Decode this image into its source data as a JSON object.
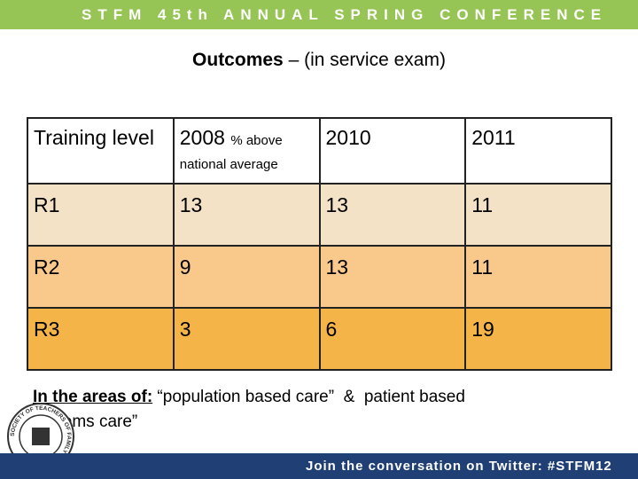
{
  "banner": "STFM 45th ANNUAL SPRING CONFERENCE",
  "title": {
    "bold": "Outcomes",
    "rest": " – (in service exam)"
  },
  "table": {
    "header": [
      "Training level",
      {
        "main": "2008",
        "note": "% above national average"
      },
      "2010",
      "2011"
    ],
    "rows": [
      [
        "R1",
        "13",
        "13",
        "11"
      ],
      [
        "R2",
        "9",
        "13",
        "11"
      ],
      [
        "R3",
        "3",
        "6",
        "19"
      ]
    ]
  },
  "note": {
    "label": "In the areas of:",
    "text": " “population based care”  &  patient based systems care”"
  },
  "logo": "SOCIETY OF TEACHERS OF FAMILY MEDICINE",
  "footer": "Join the conversation on Twitter: #STFM12"
}
